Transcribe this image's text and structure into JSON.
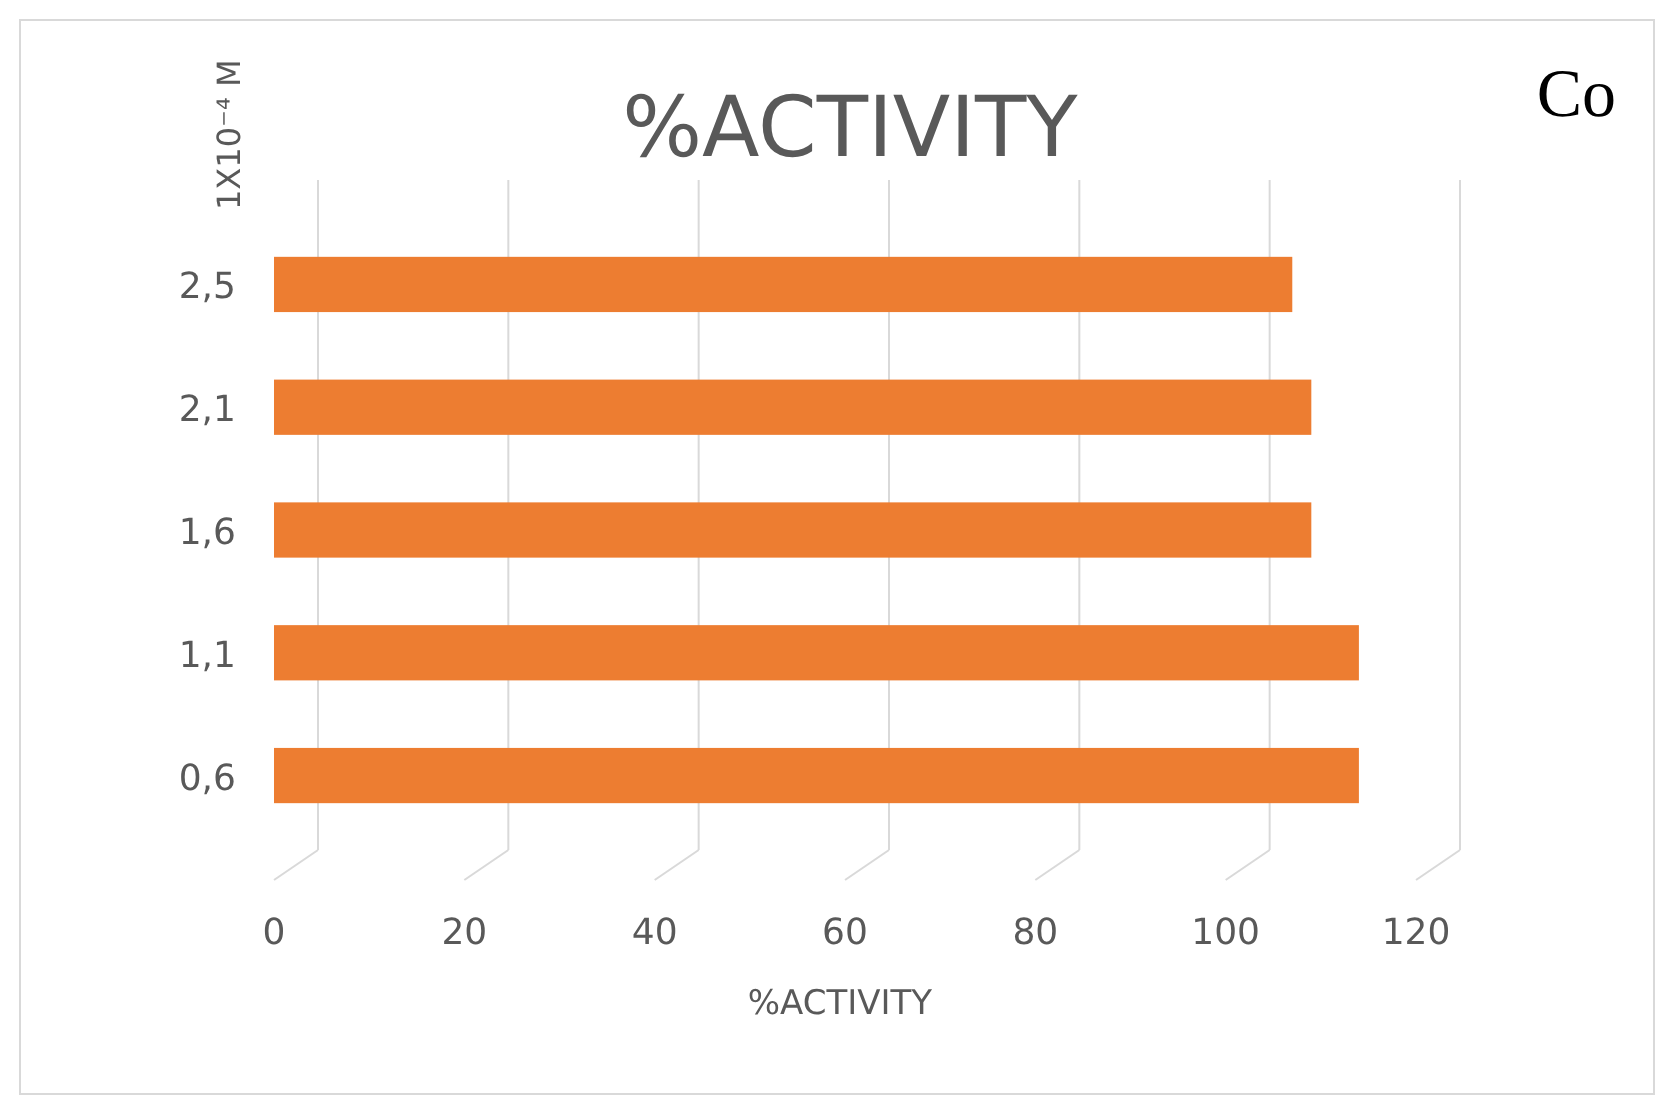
{
  "chart_data": {
    "type": "bar",
    "orientation": "horizontal",
    "title": "%ACTIVITY",
    "xlabel": "%ACTIVITY",
    "ylabel": "1X10⁻⁴ M",
    "annotations": [
      "Co"
    ],
    "categories": [
      "2,5",
      "2,1",
      "1,6",
      "1,1",
      "0,6"
    ],
    "values": [
      107,
      109,
      109,
      114,
      114
    ],
    "color": "#ed7d31",
    "xlim": [
      0,
      120
    ],
    "xticks": [
      0,
      20,
      40,
      60,
      80,
      100,
      120
    ],
    "grid": "x"
  }
}
